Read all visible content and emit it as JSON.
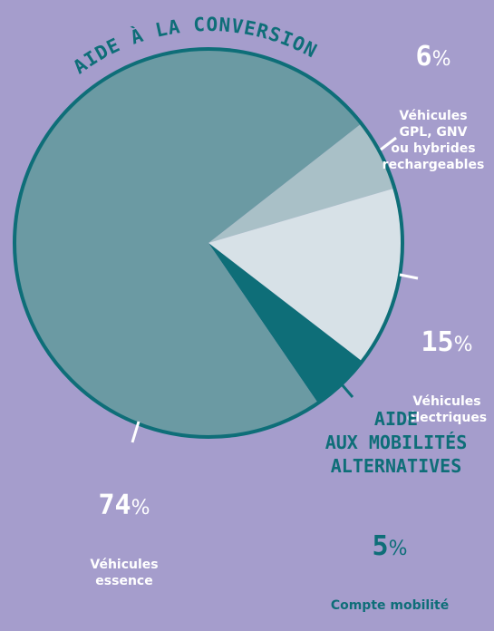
{
  "chart_data": {
    "type": "pie",
    "title": "AIDE À LA CONVERSION",
    "annotation": "AIDE\nAUX MOBILITÉS\nALTERNATIVES",
    "unit": "%",
    "categories": [
      "Véhicules\nGPL, GNV\nou hybrides\nrechargeables",
      "Véhicules\nélectriques",
      "Compte mobilité",
      "Véhicules\nessence"
    ],
    "values": [
      6,
      15,
      5,
      74
    ],
    "colors": [
      "#a9c0c7",
      "#d7e1e7",
      "#0e6e78",
      "#6b9aa3"
    ],
    "border_color": "#0e6e78"
  }
}
